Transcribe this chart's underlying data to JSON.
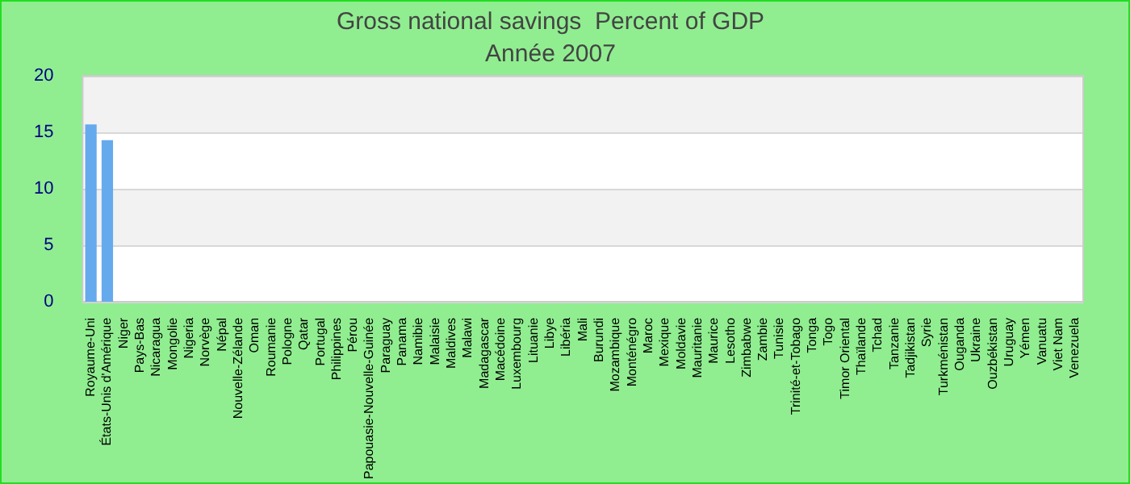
{
  "chart_data": {
    "type": "bar",
    "title": "Gross national savings  Percent of GDP",
    "subtitle": "Année 2007",
    "categories": [
      "Royaume-Uni",
      "États-Unis d'Amérique",
      "Niger",
      "Pays-Bas",
      "Nicaragua",
      "Mongolie",
      "Nigeria",
      "Norvège",
      "Népal",
      "Nouvelle-Zélande",
      "Oman",
      "Roumanie",
      "Pologne",
      "Qatar",
      "Portugal",
      "Philippines",
      "Pérou",
      "Papouasie-Nouvelle-Guinée",
      "Paraguay",
      "Panama",
      "Namibie",
      "Malaisie",
      "Maldives",
      "Malawi",
      "Madagascar",
      "Macédoine",
      "Luxembourg",
      "Lituanie",
      "Libye",
      "Libéria",
      "Mali",
      "Burundi",
      "Mozambique",
      "Monténégro",
      "Maroc",
      "Mexique",
      "Moldavie",
      "Mauritanie",
      "Maurice",
      "Lesotho",
      "Zimbabwe",
      "Zambie",
      "Tunisie",
      "Trinité-et-Tobago",
      "Tonga",
      "Togo",
      "Timor Oriental",
      "Thaïlande",
      "Tchad",
      "Tanzanie",
      "Tadjikistan",
      "Syrie",
      "Turkménistan",
      "Ouganda",
      "Ukraine",
      "Ouzbékistan",
      "Uruguay",
      "Yémen",
      "Vanuatu",
      "Viet Nam",
      "Venezuela"
    ],
    "values": [
      15.7,
      14.3,
      null,
      null,
      null,
      null,
      null,
      null,
      null,
      null,
      null,
      null,
      null,
      null,
      null,
      null,
      null,
      null,
      null,
      null,
      null,
      null,
      null,
      null,
      null,
      null,
      null,
      null,
      null,
      null,
      null,
      null,
      null,
      null,
      null,
      null,
      null,
      null,
      null,
      null,
      null,
      null,
      null,
      null,
      null,
      null,
      null,
      null,
      null,
      null,
      null,
      null,
      null,
      null,
      null,
      null,
      null,
      null,
      null,
      null,
      null
    ],
    "color": "#66aaee",
    "ylim": [
      0,
      20
    ],
    "yticks": [
      0,
      5,
      10,
      15,
      20
    ],
    "grid": true
  }
}
